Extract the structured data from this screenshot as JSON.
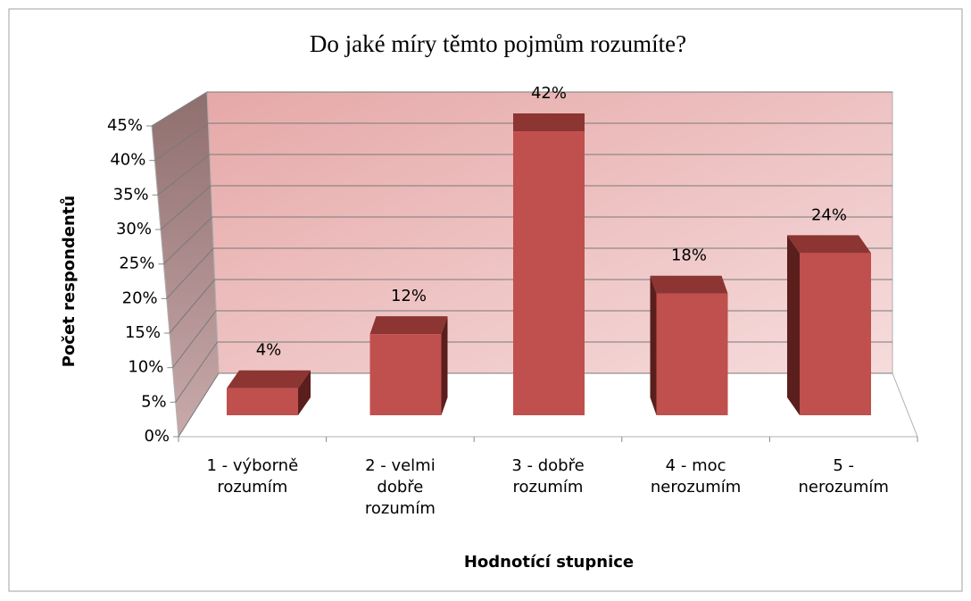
{
  "chart_data": {
    "type": "bar3d",
    "title": "Do jaké míry těmto pojmům rozumíte?",
    "y_axis_label": "Počet respondentů",
    "x_axis_label": "Hodnotící stupnice",
    "categories": [
      "1 - výborně rozumím",
      "2 - velmi dobře rozumím",
      "3 - dobře rozumím",
      "4 - moc nerozumím",
      "5 - nerozumím"
    ],
    "values": [
      4,
      12,
      42,
      18,
      24
    ],
    "value_labels": [
      "4%",
      "12%",
      "42%",
      "18%",
      "24%"
    ],
    "color": "#c0504d",
    "ylim": [
      0,
      45
    ],
    "yticks": [
      {
        "value": 0,
        "label": "0%"
      },
      {
        "value": 5,
        "label": "5%"
      },
      {
        "value": 10,
        "label": "10%"
      },
      {
        "value": 15,
        "label": "15%"
      },
      {
        "value": 20,
        "label": "20%"
      },
      {
        "value": 25,
        "label": "25%"
      },
      {
        "value": 30,
        "label": "30%"
      },
      {
        "value": 35,
        "label": "35%"
      },
      {
        "value": 40,
        "label": "40%"
      },
      {
        "value": 45,
        "label": "45%"
      }
    ],
    "grid": true
  }
}
